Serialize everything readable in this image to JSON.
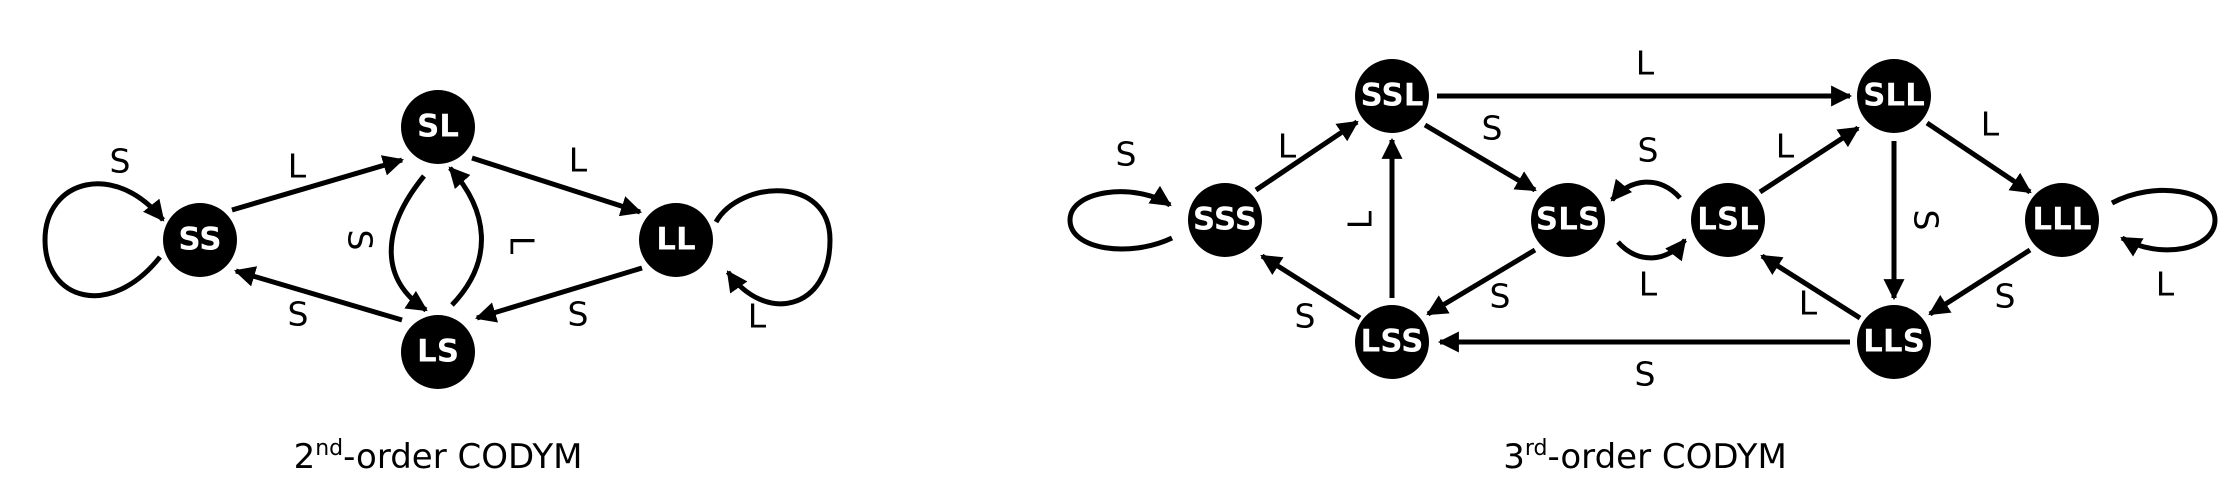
{
  "colors": {
    "node_fill": "#000000",
    "node_text": "#ffffff",
    "edge": "#000000",
    "background": "#ffffff"
  },
  "diagrams": [
    {
      "id": "second-order",
      "caption": {
        "base": "2",
        "sup": "nd",
        "rest": "-order CODYM"
      },
      "nodes": [
        "SS",
        "SL",
        "LL",
        "LS"
      ],
      "edges": [
        {
          "from": "SS",
          "to": "SS",
          "label": "S"
        },
        {
          "from": "SS",
          "to": "SL",
          "label": "L"
        },
        {
          "from": "SL",
          "to": "LL",
          "label": "L"
        },
        {
          "from": "SL",
          "to": "LS",
          "label": "S"
        },
        {
          "from": "LS",
          "to": "SL",
          "label": "L"
        },
        {
          "from": "LS",
          "to": "SS",
          "label": "S"
        },
        {
          "from": "LL",
          "to": "LS",
          "label": "S"
        },
        {
          "from": "LL",
          "to": "LL",
          "label": "L"
        }
      ]
    },
    {
      "id": "third-order",
      "caption": {
        "base": "3",
        "sup": "rd",
        "rest": "-order CODYM"
      },
      "nodes": [
        "SSS",
        "SSL",
        "SLL",
        "LLL",
        "SLS",
        "LSL",
        "LSS",
        "LLS"
      ],
      "edges": [
        {
          "from": "SSS",
          "to": "SSS",
          "label": "S"
        },
        {
          "from": "SSS",
          "to": "SSL",
          "label": "L"
        },
        {
          "from": "SSL",
          "to": "SLL",
          "label": "L"
        },
        {
          "from": "SSL",
          "to": "SLS",
          "label": "S"
        },
        {
          "from": "SLL",
          "to": "LLL",
          "label": "L"
        },
        {
          "from": "SLL",
          "to": "LLS",
          "label": "S"
        },
        {
          "from": "LLL",
          "to": "LLL",
          "label": "L"
        },
        {
          "from": "LLL",
          "to": "LLS",
          "label": "S"
        },
        {
          "from": "LSL",
          "to": "SLS",
          "label": "S"
        },
        {
          "from": "LSL",
          "to": "SLL",
          "label": "L"
        },
        {
          "from": "SLS",
          "to": "LSL",
          "label": "L"
        },
        {
          "from": "SLS",
          "to": "LSS",
          "label": "S"
        },
        {
          "from": "LSS",
          "to": "SSL",
          "label": "L"
        },
        {
          "from": "LSS",
          "to": "SSS",
          "label": "S"
        },
        {
          "from": "LLS",
          "to": "LSL",
          "label": "L"
        },
        {
          "from": "LLS",
          "to": "LSS",
          "label": "S"
        }
      ]
    }
  ]
}
